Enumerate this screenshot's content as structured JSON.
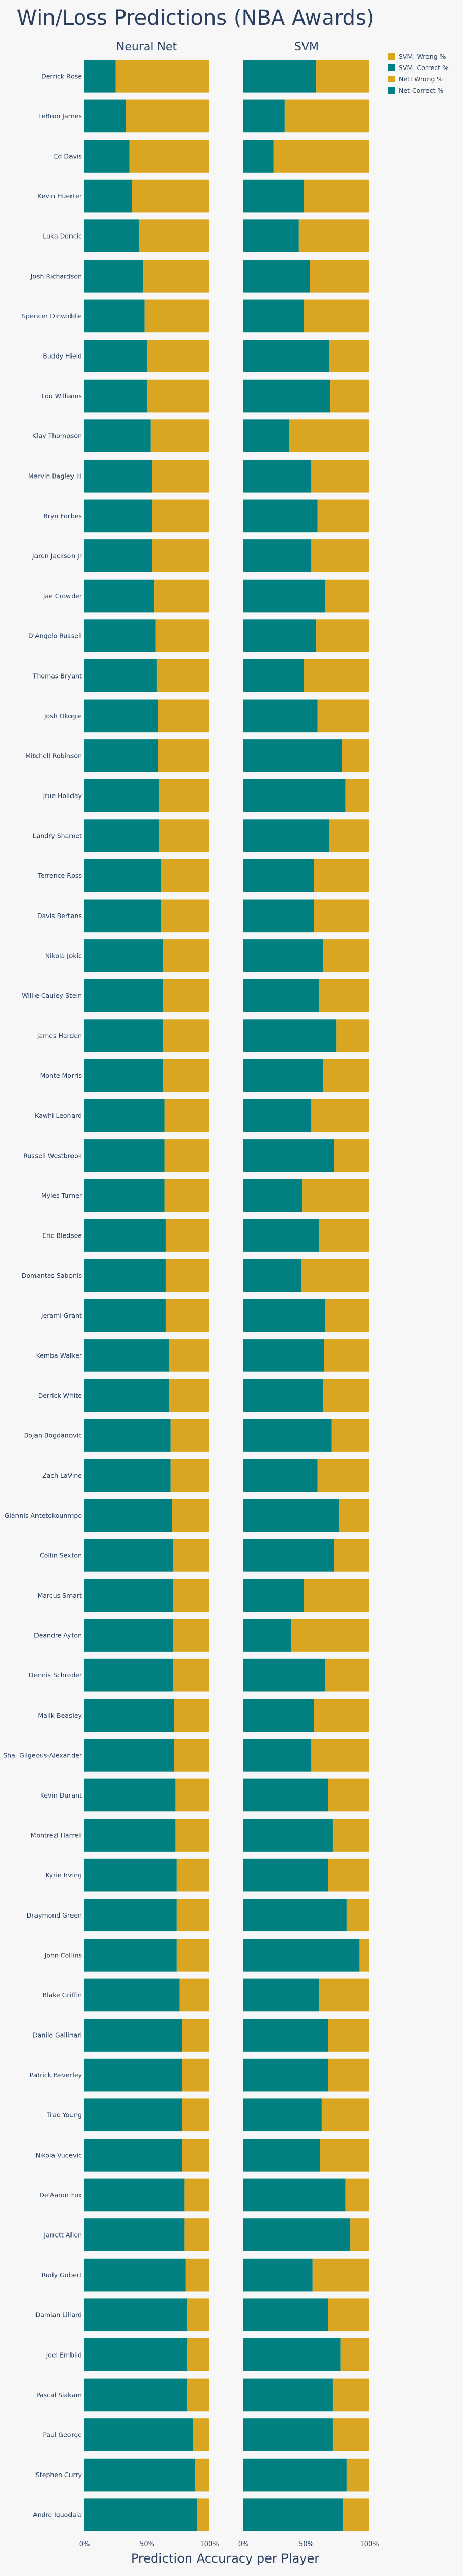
{
  "chart_data": {
    "type": "bar",
    "orientation": "horizontal",
    "stacked": true,
    "title": "Win/Loss Predictions (NBA Awards)",
    "xlabel": "Prediction Accuracy per Player",
    "xlim": [
      0,
      100
    ],
    "xticks": [
      "0%",
      "50%",
      "100%"
    ],
    "legend": {
      "position": "top-right",
      "items": [
        {
          "label": "SVM: Wrong %",
          "color": "#DAA520"
        },
        {
          "label": "SVM: Correct %",
          "color": "#008080"
        },
        {
          "label": "Net: Wrong %",
          "color": "#DAA520"
        },
        {
          "label": "Net Correct %",
          "color": "#008080"
        }
      ]
    },
    "colors": {
      "correct": "#008080",
      "wrong": "#DAA520"
    },
    "categories": [
      "Derrick Rose",
      "LeBron James",
      "Ed Davis",
      "Kevin Huerter",
      "Luka Doncic",
      "Josh Richardson",
      "Spencer Dinwiddie",
      "Buddy Hield",
      "Lou Williams",
      "Klay Thompson",
      "Marvin Bagley III",
      "Bryn Forbes",
      "Jaren Jackson Jr",
      "Jae Crowder",
      "D'Angelo Russell",
      "Thomas Bryant",
      "Josh Okogie",
      "Mitchell Robinson",
      "Jrue Holiday",
      "Landry Shamet",
      "Terrence Ross",
      "Davis Bertans",
      "Nikola Jokic",
      "Willie Cauley-Stein",
      "James Harden",
      "Monte Morris",
      "Kawhi Leonard",
      "Russell Westbrook",
      "Myles Turner",
      "Eric Bledsoe",
      "Domantas Sabonis",
      "Jerami Grant",
      "Kemba Walker",
      "Derrick White",
      "Bojan Bogdanovic",
      "Zach LaVine",
      "Giannis Antetokounmpo",
      "Collin Sexton",
      "Marcus Smart",
      "Deandre Ayton",
      "Dennis Schroder",
      "Malik Beasley",
      "Shai Gilgeous-Alexander",
      "Kevin Durant",
      "Montrezl Harrell",
      "Kyrie Irving",
      "Draymond Green",
      "John Collins",
      "Blake Griffin",
      "Danilo Gallinari",
      "Patrick Beverley",
      "Trae Young",
      "Nikola Vucevic",
      "De'Aaron Fox",
      "Jarrett Allen",
      "Rudy Gobert",
      "Damian Lillard",
      "Joel Embiid",
      "Pascal Siakam",
      "Paul George",
      "Stephen Curry",
      "Andre Iguodala"
    ],
    "panels": [
      {
        "subtitle": "Neural Net",
        "series": [
          {
            "name": "Net Correct %",
            "values": [
              25,
              33,
              36,
              38,
              44,
              47,
              48,
              50,
              50,
              53,
              54,
              54,
              54,
              56,
              57,
              58,
              59,
              59,
              60,
              60,
              61,
              61,
              63,
              63,
              63,
              63,
              64,
              64,
              64,
              65,
              65,
              65,
              68,
              68,
              69,
              69,
              70,
              71,
              71,
              71,
              71,
              72,
              72,
              73,
              73,
              74,
              74,
              74,
              76,
              78,
              78,
              78,
              78,
              80,
              80,
              81,
              82,
              82,
              82,
              87,
              89,
              90
            ]
          },
          {
            "name": "Net: Wrong %",
            "values": [
              75,
              67,
              64,
              62,
              56,
              53,
              52,
              50,
              50,
              47,
              46,
              46,
              46,
              44,
              43,
              42,
              41,
              41,
              40,
              40,
              39,
              39,
              37,
              37,
              37,
              37,
              36,
              36,
              36,
              35,
              35,
              35,
              32,
              32,
              31,
              31,
              30,
              29,
              29,
              29,
              29,
              28,
              28,
              27,
              27,
              26,
              26,
              26,
              24,
              22,
              22,
              22,
              22,
              20,
              20,
              19,
              18,
              18,
              18,
              13,
              11,
              10
            ]
          }
        ]
      },
      {
        "subtitle": "SVM",
        "series": [
          {
            "name": "SVM: Correct %",
            "values": [
              58,
              33,
              24,
              48,
              44,
              53,
              48,
              68,
              69,
              36,
              54,
              59,
              54,
              65,
              58,
              48,
              59,
              78,
              81,
              68,
              56,
              56,
              63,
              60,
              74,
              63,
              54,
              72,
              47,
              60,
              46,
              65,
              64,
              63,
              70,
              59,
              76,
              72,
              48,
              38,
              65,
              56,
              54,
              67,
              71,
              67,
              82,
              92,
              60,
              67,
              67,
              62,
              61,
              81,
              85,
              55,
              67,
              77,
              71,
              71,
              82,
              79
            ]
          },
          {
            "name": "SVM: Wrong %",
            "values": [
              42,
              67,
              76,
              52,
              56,
              47,
              52,
              32,
              31,
              64,
              46,
              41,
              46,
              35,
              42,
              52,
              41,
              22,
              19,
              32,
              44,
              44,
              37,
              40,
              26,
              37,
              46,
              28,
              53,
              40,
              54,
              35,
              36,
              37,
              30,
              41,
              24,
              28,
              52,
              62,
              35,
              44,
              46,
              33,
              29,
              33,
              18,
              8,
              40,
              33,
              33,
              38,
              39,
              19,
              15,
              45,
              33,
              23,
              29,
              29,
              18,
              21
            ]
          }
        ]
      }
    ]
  }
}
